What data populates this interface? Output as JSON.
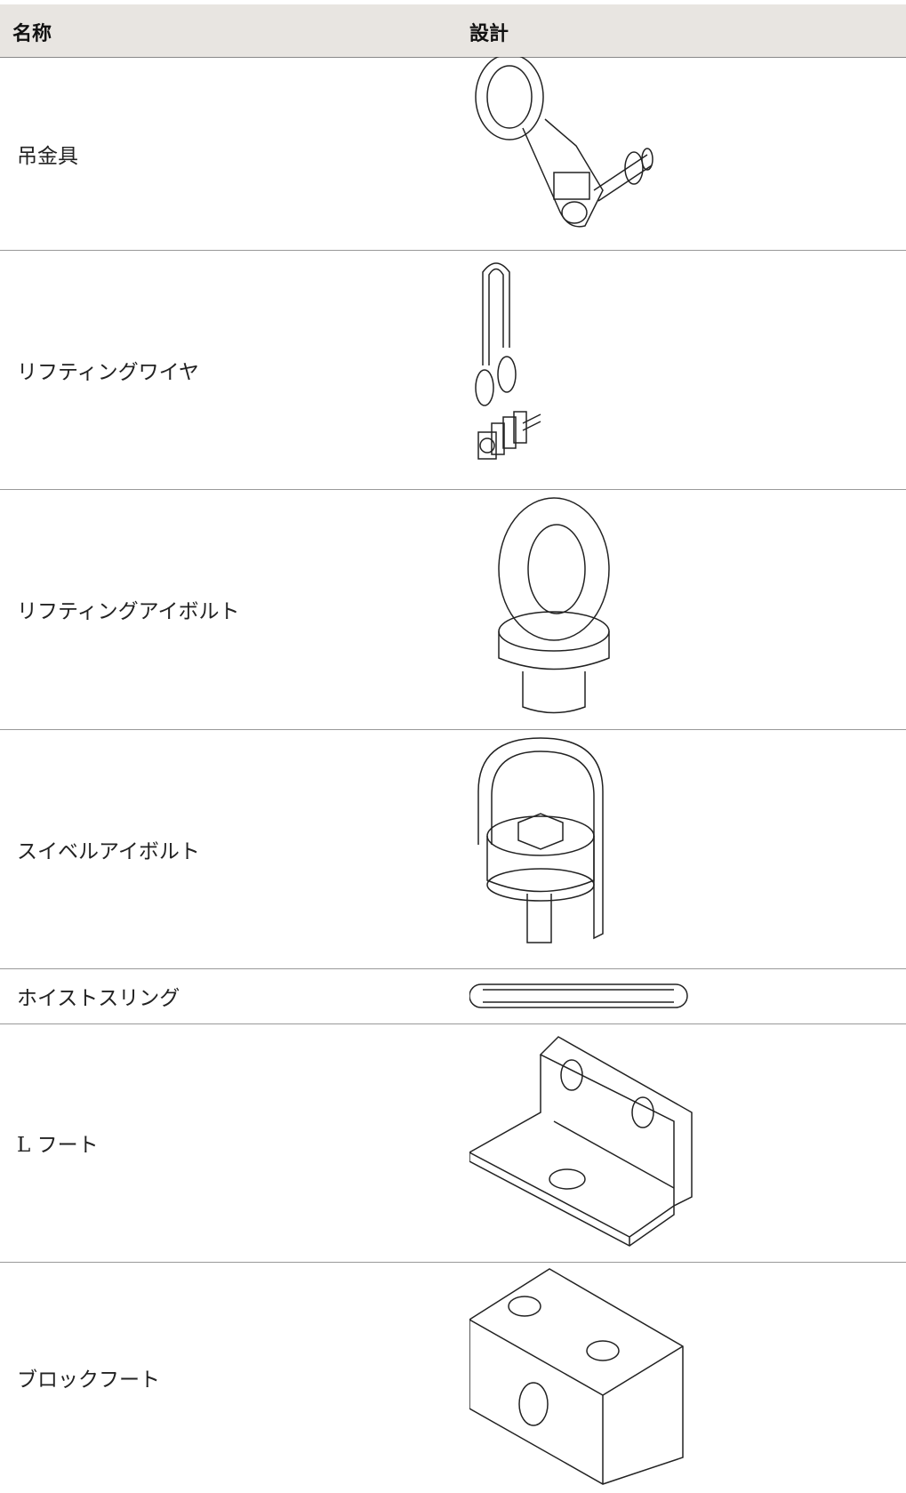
{
  "table": {
    "headers": [
      "名称",
      "設計"
    ],
    "rows": [
      "吊金具",
      "リフティングワイヤ",
      "リフティングアイボルト",
      "スイベルアイボルト",
      "ホイストスリング",
      "L フート",
      "ブロックフート"
    ]
  }
}
